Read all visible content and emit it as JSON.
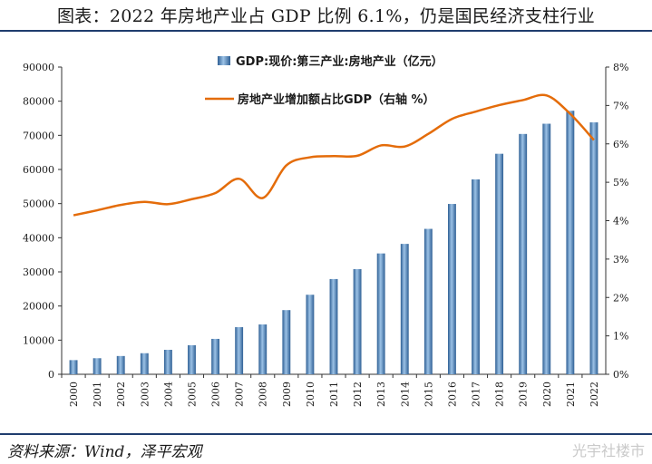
{
  "title": "图表：2022 年房地产业占 GDP 比例 6.1%，仍是国民经济支柱行业",
  "source": "资料来源：Wind，泽平宏观",
  "watermark": "光宇社楼市",
  "chart_data": {
    "type": "bar",
    "categories": [
      "2000",
      "2001",
      "2002",
      "2003",
      "2004",
      "2005",
      "2006",
      "2007",
      "2008",
      "2009",
      "2010",
      "2011",
      "2012",
      "2013",
      "2014",
      "2015",
      "2016",
      "2017",
      "2018",
      "2019",
      "2020",
      "2021",
      "2022"
    ],
    "series": [
      {
        "name": "GDP:现价:第三产业:房地产业（亿元）",
        "type": "bar",
        "axis": "left",
        "color": "#4f81bd",
        "values": [
          4150,
          4710,
          5350,
          6170,
          7170,
          8520,
          10370,
          13800,
          14600,
          18800,
          23300,
          27900,
          30800,
          35400,
          38200,
          42600,
          49900,
          57100,
          64600,
          70400,
          73400,
          77200,
          73800
        ]
      },
      {
        "name": "房地产业增加额占比GDP（右轴 %）",
        "type": "line",
        "axis": "right",
        "color": "#e46c0a",
        "values": [
          4.14,
          4.27,
          4.41,
          4.49,
          4.43,
          4.56,
          4.72,
          5.09,
          4.59,
          5.44,
          5.65,
          5.68,
          5.69,
          5.96,
          5.93,
          6.26,
          6.65,
          6.84,
          7.01,
          7.14,
          7.26,
          6.78,
          6.1
        ]
      }
    ],
    "y_left": {
      "min": 0,
      "max": 90000,
      "ticks": [
        "0",
        "10000",
        "20000",
        "30000",
        "40000",
        "50000",
        "60000",
        "70000",
        "80000",
        "90000"
      ]
    },
    "y_right": {
      "min": 0,
      "max": 8,
      "ticks": [
        "0%",
        "1%",
        "2%",
        "3%",
        "4%",
        "5%",
        "6%",
        "7%",
        "8%"
      ]
    },
    "grid": false,
    "legend": "top"
  }
}
